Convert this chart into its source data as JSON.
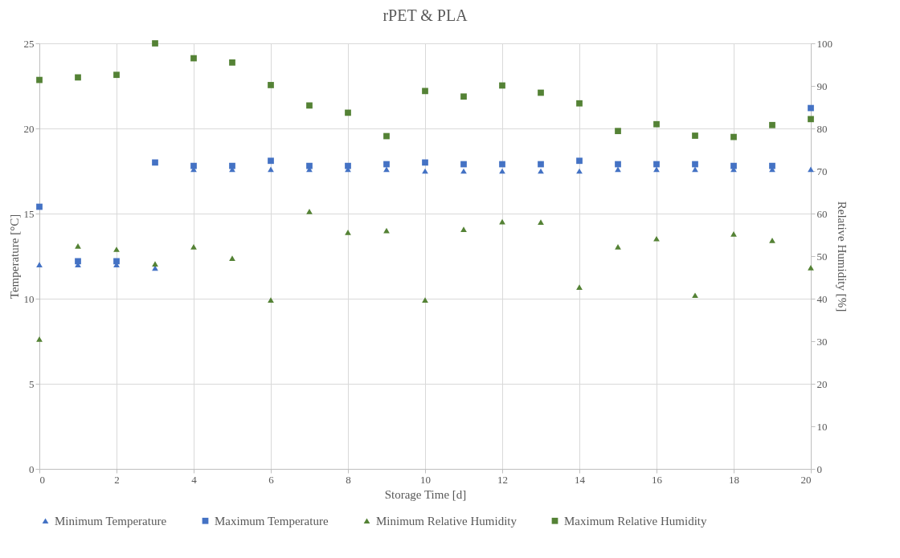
{
  "chart_data": {
    "type": "scatter",
    "title": "rPET & PLA",
    "xlabel": "Storage Time [d]",
    "ylabel": "Temperature [°C]",
    "y2label": "Relative Humidity [%]",
    "x": [
      0,
      1,
      2,
      3,
      4,
      5,
      6,
      7,
      8,
      9,
      10,
      11,
      12,
      13,
      14,
      15,
      16,
      17,
      18,
      19,
      20
    ],
    "xlim": [
      0,
      20
    ],
    "xticks": [
      0,
      2,
      4,
      6,
      8,
      10,
      12,
      14,
      16,
      18,
      20
    ],
    "ylim": [
      0,
      25
    ],
    "yticks": [
      0,
      5,
      10,
      15,
      20,
      25
    ],
    "y2lim": [
      0,
      100
    ],
    "y2ticks": [
      0,
      10,
      20,
      30,
      40,
      50,
      60,
      70,
      80,
      90,
      100
    ],
    "grid": true,
    "legend": "bottom",
    "series": [
      {
        "name": "Minimum Temperature",
        "color": "#4472c4",
        "marker": "triangle",
        "values": [
          12.0,
          12.0,
          12.0,
          11.8,
          17.6,
          17.6,
          17.6,
          17.6,
          17.6,
          17.6,
          17.5,
          17.5,
          17.5,
          17.5,
          17.5,
          17.6,
          17.6,
          17.6,
          17.6,
          17.6,
          17.6
        ]
      },
      {
        "name": "Maximum Temperature",
        "color": "#4472c4",
        "marker": "square",
        "values": [
          15.4,
          12.2,
          12.2,
          18.0,
          17.8,
          17.8,
          18.1,
          17.8,
          17.8,
          17.9,
          18.0,
          17.9,
          17.9,
          17.9,
          18.1,
          17.9,
          17.9,
          17.9,
          17.8,
          17.8,
          21.2
        ]
      },
      {
        "name": "Minimum Relative Humidity",
        "color": "#548235",
        "marker": "triangle",
        "axis": "y2",
        "values": [
          30.5,
          52.4,
          51.6,
          48.2,
          52.2,
          49.5,
          39.7,
          60.5,
          55.6,
          56.0,
          39.7,
          56.3,
          58.1,
          58.0,
          42.7,
          52.2,
          54.1,
          40.8,
          55.2,
          53.7,
          47.3
        ]
      },
      {
        "name": "Maximum Relative Humidity",
        "color": "#548235",
        "marker": "square",
        "axis": "y2",
        "values": [
          91.4,
          92.0,
          92.6,
          100,
          96.5,
          95.5,
          90.2,
          85.4,
          83.7,
          78.2,
          88.8,
          87.5,
          90.1,
          88.4,
          85.9,
          79.4,
          81.0,
          78.3,
          78.0,
          80.8,
          82.2
        ]
      }
    ]
  }
}
